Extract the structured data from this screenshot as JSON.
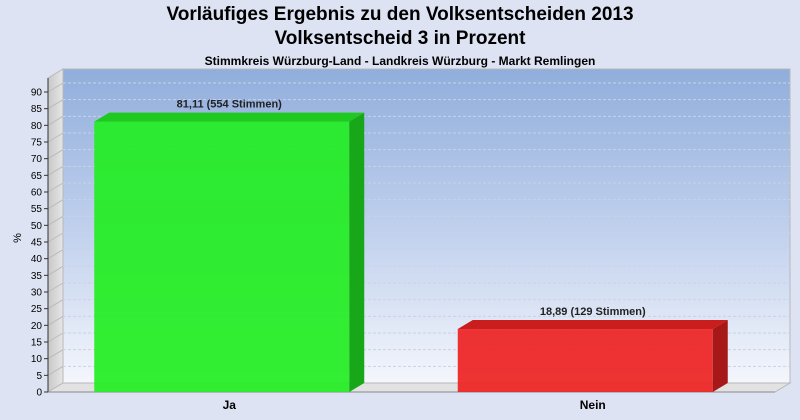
{
  "chart_data": {
    "type": "bar",
    "title": "Vorläufiges Ergebnis zu den Volksentscheiden 2013",
    "subtitle": "Volksentscheid 3 in Prozent",
    "caption": "Stimmkreis Würzburg-Land - Landkreis Würzburg - Markt Remlingen",
    "ylabel": "%",
    "xlabel": "",
    "ylim": [
      0,
      90
    ],
    "ytick_step": 5,
    "grid": true,
    "categories": [
      "Ja",
      "Nein"
    ],
    "values": [
      81.11,
      18.89
    ],
    "data_labels": [
      "81,11 (554 Stimmen)",
      "18,89 (129 Stimmen)"
    ],
    "colors": [
      "#22ee22",
      "#ee2222"
    ]
  }
}
